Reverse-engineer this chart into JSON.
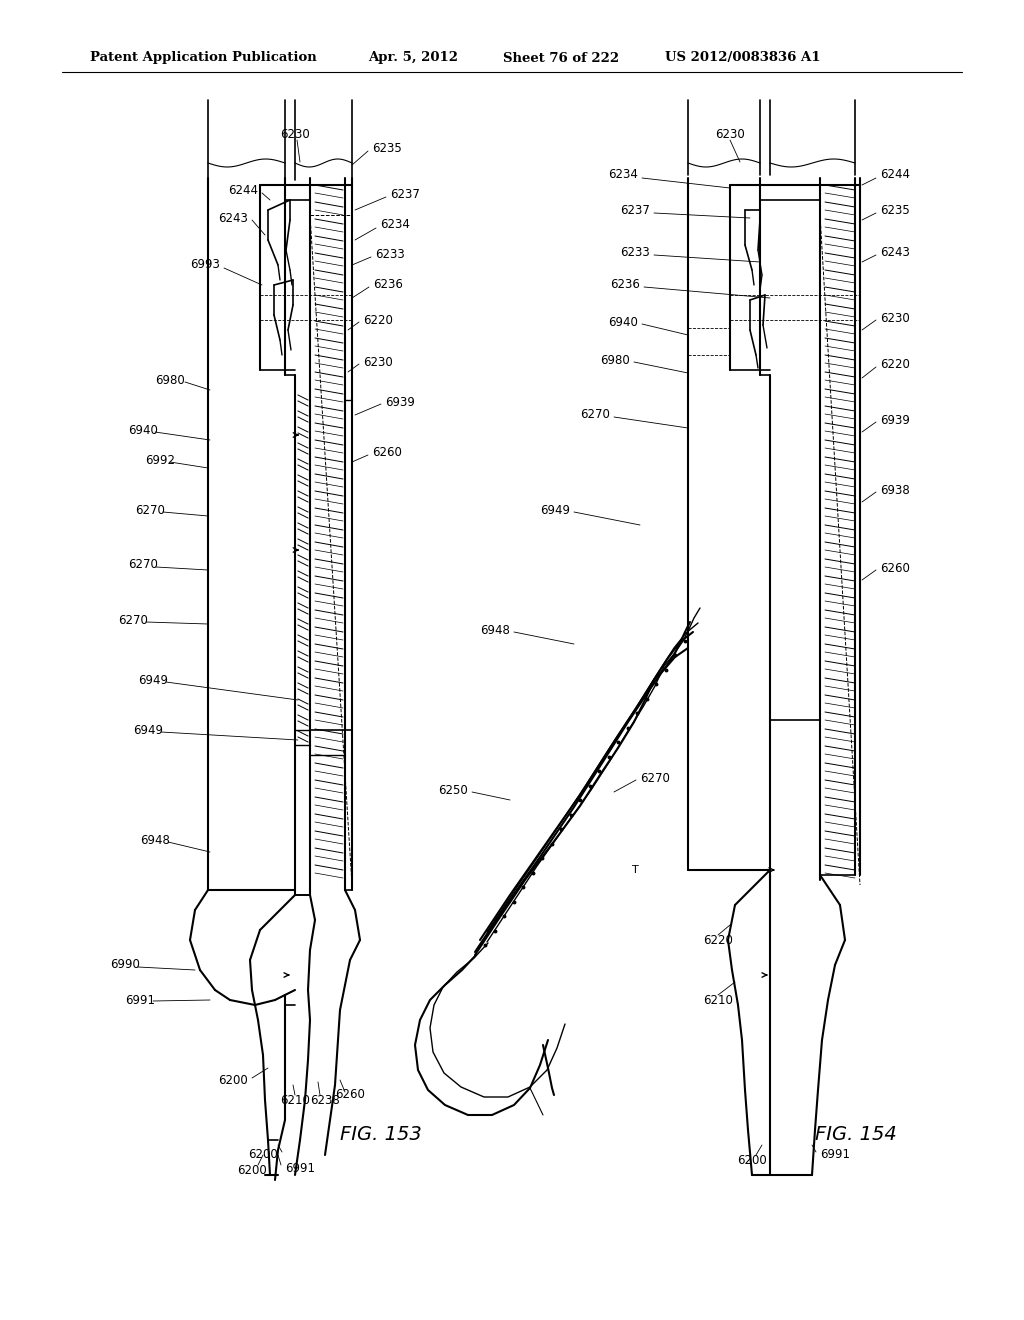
{
  "bg_color": "#ffffff",
  "header_text": "Patent Application Publication",
  "header_date": "Apr. 5, 2012",
  "header_sheet": "Sheet 76 of 222",
  "header_patent": "US 2012/0083836 A1",
  "fig153_label": "FIG. 153",
  "fig154_label": "FIG. 154",
  "line_color": "#000000",
  "font_size": 8.5
}
